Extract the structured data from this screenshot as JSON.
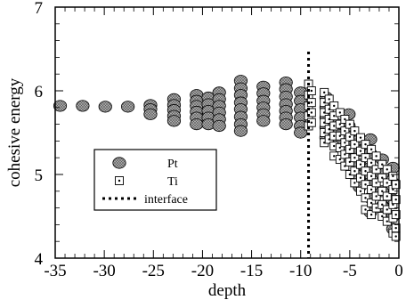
{
  "chart_data": {
    "type": "scatter",
    "title": "",
    "xlabel": "depth",
    "ylabel": "cohesive energy",
    "xlim": [
      -35,
      0
    ],
    "ylim": [
      4,
      7
    ],
    "xticks": [
      -35,
      -30,
      -25,
      -20,
      -15,
      -10,
      -5,
      0
    ],
    "yticks": [
      4,
      5,
      6,
      7
    ],
    "x_minor_step": 1,
    "y_minor_step": 0.2,
    "grid": false,
    "legend_position": "left-center",
    "series": [
      {
        "name": "Pt",
        "marker": "circle-crosshatch",
        "color": "#9a9a9a",
        "points": [
          [
            -34.5,
            5.82
          ],
          [
            -32.2,
            5.82
          ],
          [
            -29.9,
            5.81
          ],
          [
            -27.6,
            5.81
          ],
          [
            -25.3,
            5.83
          ],
          [
            -25.3,
            5.78
          ],
          [
            -25.3,
            5.72
          ],
          [
            -22.9,
            5.9
          ],
          [
            -22.9,
            5.83
          ],
          [
            -22.9,
            5.77
          ],
          [
            -22.9,
            5.7
          ],
          [
            -22.9,
            5.64
          ],
          [
            -20.6,
            5.95
          ],
          [
            -20.6,
            5.88
          ],
          [
            -20.6,
            5.82
          ],
          [
            -20.6,
            5.75
          ],
          [
            -20.6,
            5.68
          ],
          [
            -20.6,
            5.6
          ],
          [
            -19.4,
            5.92
          ],
          [
            -19.4,
            5.84
          ],
          [
            -19.4,
            5.76
          ],
          [
            -19.4,
            5.68
          ],
          [
            -19.4,
            5.6
          ],
          [
            -18.3,
            5.98
          ],
          [
            -18.3,
            5.9
          ],
          [
            -18.3,
            5.82
          ],
          [
            -18.3,
            5.74
          ],
          [
            -18.3,
            5.66
          ],
          [
            -18.3,
            5.58
          ],
          [
            -16.1,
            6.12
          ],
          [
            -16.1,
            6.03
          ],
          [
            -16.1,
            5.95
          ],
          [
            -16.1,
            5.86
          ],
          [
            -16.1,
            5.78
          ],
          [
            -16.1,
            5.69
          ],
          [
            -16.1,
            5.6
          ],
          [
            -16.1,
            5.52
          ],
          [
            -13.8,
            6.05
          ],
          [
            -13.8,
            5.97
          ],
          [
            -13.8,
            5.88
          ],
          [
            -13.8,
            5.8
          ],
          [
            -13.8,
            5.72
          ],
          [
            -13.8,
            5.64
          ],
          [
            -11.5,
            6.1
          ],
          [
            -11.5,
            6.02
          ],
          [
            -11.5,
            5.93
          ],
          [
            -11.5,
            5.84
          ],
          [
            -11.5,
            5.76
          ],
          [
            -11.5,
            5.68
          ],
          [
            -11.5,
            5.6
          ],
          [
            -10.0,
            5.98
          ],
          [
            -10.0,
            5.88
          ],
          [
            -10.0,
            5.78
          ],
          [
            -10.0,
            5.68
          ],
          [
            -10.0,
            5.58
          ],
          [
            -10.0,
            5.5
          ],
          [
            -7.4,
            5.92
          ],
          [
            -7.4,
            5.8
          ],
          [
            -7.4,
            5.68
          ],
          [
            -7.4,
            5.56
          ],
          [
            -7.4,
            5.44
          ],
          [
            -6.3,
            5.6
          ],
          [
            -6.3,
            5.48
          ],
          [
            -6.3,
            5.36
          ],
          [
            -5.1,
            5.72
          ],
          [
            -5.1,
            5.58
          ],
          [
            -5.1,
            5.45
          ],
          [
            -5.1,
            5.3
          ],
          [
            -5.1,
            5.18
          ],
          [
            -4.0,
            5.42
          ],
          [
            -4.0,
            5.28
          ],
          [
            -4.0,
            5.12
          ],
          [
            -4.0,
            4.98
          ],
          [
            -4.0,
            4.85
          ],
          [
            -2.9,
            5.42
          ],
          [
            -2.9,
            5.25
          ],
          [
            -2.9,
            5.08
          ],
          [
            -2.9,
            4.9
          ],
          [
            -2.9,
            4.72
          ],
          [
            -2.9,
            4.55
          ],
          [
            -1.7,
            5.18
          ],
          [
            -1.7,
            5.0
          ],
          [
            -1.7,
            4.8
          ],
          [
            -1.7,
            4.62
          ],
          [
            -0.6,
            5.08
          ],
          [
            -0.6,
            4.9
          ],
          [
            -0.6,
            4.7
          ],
          [
            -0.6,
            4.5
          ],
          [
            -0.6,
            4.35
          ]
        ]
      },
      {
        "name": "Ti",
        "marker": "square-dotted",
        "color": "#ffffff",
        "points": [
          [
            -9.2,
            6.08
          ],
          [
            -9.2,
            5.95
          ],
          [
            -9.2,
            5.82
          ],
          [
            -9.2,
            5.7
          ],
          [
            -9.2,
            5.58
          ],
          [
            -8.9,
            6.0
          ],
          [
            -8.9,
            5.86
          ],
          [
            -8.9,
            5.74
          ],
          [
            -8.9,
            5.62
          ],
          [
            -7.6,
            5.98
          ],
          [
            -7.6,
            5.86
          ],
          [
            -7.6,
            5.74
          ],
          [
            -7.6,
            5.62
          ],
          [
            -7.6,
            5.5
          ],
          [
            -7.6,
            5.38
          ],
          [
            -7.1,
            5.9
          ],
          [
            -7.1,
            5.78
          ],
          [
            -7.1,
            5.66
          ],
          [
            -7.1,
            5.54
          ],
          [
            -7.1,
            5.42
          ],
          [
            -6.6,
            5.82
          ],
          [
            -6.6,
            5.7
          ],
          [
            -6.6,
            5.58
          ],
          [
            -6.6,
            5.46
          ],
          [
            -6.6,
            5.34
          ],
          [
            -6.6,
            5.22
          ],
          [
            -6.0,
            5.74
          ],
          [
            -6.0,
            5.6
          ],
          [
            -6.0,
            5.46
          ],
          [
            -6.0,
            5.32
          ],
          [
            -6.0,
            5.18
          ],
          [
            -5.5,
            5.66
          ],
          [
            -5.5,
            5.52
          ],
          [
            -5.5,
            5.38
          ],
          [
            -5.5,
            5.24
          ],
          [
            -5.5,
            5.1
          ],
          [
            -5.0,
            5.6
          ],
          [
            -5.0,
            5.45
          ],
          [
            -5.0,
            5.3
          ],
          [
            -5.0,
            5.15
          ],
          [
            -5.0,
            5.0
          ],
          [
            -4.5,
            5.52
          ],
          [
            -4.5,
            5.36
          ],
          [
            -4.5,
            5.2
          ],
          [
            -4.5,
            5.04
          ],
          [
            -4.5,
            4.9
          ],
          [
            -3.9,
            5.44
          ],
          [
            -3.9,
            5.28
          ],
          [
            -3.9,
            5.12
          ],
          [
            -3.9,
            4.96
          ],
          [
            -3.9,
            4.8
          ],
          [
            -3.4,
            5.36
          ],
          [
            -3.4,
            5.2
          ],
          [
            -3.4,
            5.04
          ],
          [
            -3.4,
            4.88
          ],
          [
            -3.4,
            4.72
          ],
          [
            -3.4,
            4.58
          ],
          [
            -2.8,
            5.3
          ],
          [
            -2.8,
            5.14
          ],
          [
            -2.8,
            4.98
          ],
          [
            -2.8,
            4.82
          ],
          [
            -2.8,
            4.66
          ],
          [
            -2.8,
            4.52
          ],
          [
            -2.3,
            5.22
          ],
          [
            -2.3,
            5.06
          ],
          [
            -2.3,
            4.9
          ],
          [
            -2.3,
            4.74
          ],
          [
            -2.3,
            4.6
          ],
          [
            -1.7,
            5.12
          ],
          [
            -1.7,
            4.96
          ],
          [
            -1.7,
            4.8
          ],
          [
            -1.7,
            4.64
          ],
          [
            -1.7,
            4.5
          ],
          [
            -1.2,
            5.06
          ],
          [
            -1.2,
            4.9
          ],
          [
            -1.2,
            4.74
          ],
          [
            -1.2,
            4.58
          ],
          [
            -1.2,
            4.44
          ],
          [
            -0.6,
            4.98
          ],
          [
            -0.6,
            4.82
          ],
          [
            -0.6,
            4.64
          ],
          [
            -0.6,
            4.48
          ],
          [
            -0.6,
            4.3
          ],
          [
            -0.3,
            4.88
          ],
          [
            -0.3,
            4.7
          ],
          [
            -0.3,
            4.52
          ],
          [
            -0.3,
            4.36
          ],
          [
            -0.3,
            4.26
          ]
        ]
      },
      {
        "name": "interface",
        "type": "vline",
        "x": -9.2,
        "style": "dotted",
        "color": "#000000"
      }
    ]
  }
}
